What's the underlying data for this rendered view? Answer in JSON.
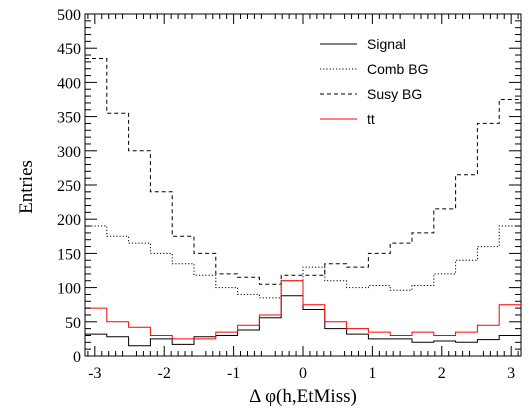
{
  "chart_data": {
    "type": "line",
    "xlabel": "Δ φ(h,EtMiss)",
    "ylabel": "Entries",
    "xlim": [
      -3.1416,
      3.1416
    ],
    "ylim": [
      0,
      500
    ],
    "x_ticks": [
      -3,
      -2,
      -1,
      0,
      1,
      2,
      3
    ],
    "y_ticks": [
      0,
      50,
      100,
      150,
      200,
      250,
      300,
      350,
      400,
      450,
      500
    ],
    "x_tick_labels": [
      "-3",
      "-2",
      "-1",
      "0",
      "1",
      "2",
      "3"
    ],
    "y_tick_labels": [
      "0",
      "50",
      "100",
      "150",
      "200",
      "250",
      "300",
      "350",
      "400",
      "450",
      "500"
    ],
    "bin_edges": [
      -3.1416,
      -2.8274,
      -2.5133,
      -2.1991,
      -1.885,
      -1.5708,
      -1.2566,
      -0.9425,
      -0.6283,
      -0.3142,
      0.0,
      0.3142,
      0.6283,
      0.9425,
      1.2566,
      1.5708,
      1.885,
      2.1991,
      2.5133,
      2.8274,
      3.1416
    ],
    "grid": false,
    "legend_position": "top-right",
    "series": [
      {
        "name": "Signal",
        "color": "#000000",
        "style": "solid",
        "values": [
          32,
          28,
          15,
          25,
          17,
          28,
          30,
          38,
          56,
          88,
          68,
          40,
          32,
          25,
          25,
          20,
          22,
          20,
          24,
          30
        ]
      },
      {
        "name": "Comb BG",
        "color": "#000000",
        "style": "dotted",
        "values": [
          190,
          175,
          165,
          150,
          135,
          118,
          100,
          90,
          85,
          110,
          130,
          110,
          100,
          103,
          96,
          103,
          120,
          140,
          160,
          190
        ]
      },
      {
        "name": "Susy BG",
        "color": "#000000",
        "style": "dashed",
        "values": [
          435,
          355,
          300,
          240,
          175,
          150,
          120,
          115,
          105,
          118,
          118,
          135,
          130,
          150,
          165,
          180,
          215,
          265,
          340,
          375
        ]
      },
      {
        "name": "tt",
        "color": "#ff0000",
        "style": "solid",
        "values": [
          70,
          50,
          42,
          30,
          25,
          25,
          35,
          45,
          60,
          110,
          75,
          50,
          40,
          35,
          30,
          35,
          30,
          35,
          45,
          75
        ]
      }
    ]
  }
}
